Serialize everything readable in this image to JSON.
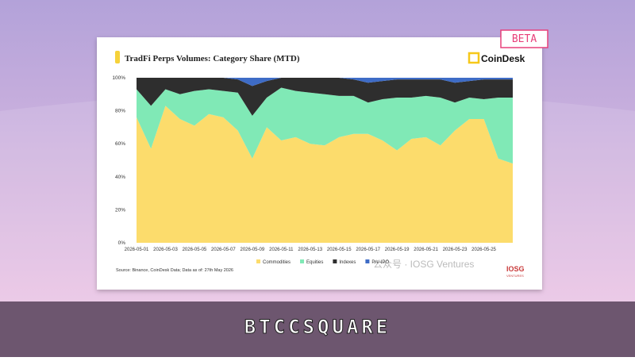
{
  "badge": "BETA",
  "brand": "CoinDesk",
  "footer": "BTCCSQUARE",
  "source": "Source: Binance, CoinDesk Data; Data as of: 27th May 2026",
  "watermark": "公众号 · IOSG Ventures",
  "logo": {
    "name": "IOSG",
    "sub": "VENTURES"
  },
  "chart_data": {
    "type": "stacked-area",
    "title": "TradFi Perps Volumes: Category Share (MTD)",
    "categories": [
      "2026-05-01",
      null,
      "2026-05-03",
      null,
      "2026-05-05",
      null,
      "2026-05-07",
      null,
      "2026-05-09",
      null,
      "2026-05-11",
      null,
      "2026-05-13",
      null,
      "2026-05-15",
      null,
      "2026-05-17",
      null,
      "2026-05-19",
      null,
      "2026-05-21",
      null,
      "2026-05-23",
      null,
      "2026-05-25",
      null,
      null
    ],
    "series": [
      {
        "name": "Commodities",
        "color": "#fcdc6c",
        "values": [
          76,
          57,
          83,
          75,
          71,
          78,
          76,
          68,
          51,
          70,
          62,
          64,
          60,
          59,
          64,
          66,
          66,
          62,
          56,
          63,
          64,
          59,
          68,
          75,
          75,
          51,
          48
        ]
      },
      {
        "name": "Equities",
        "color": "#80e9b6",
        "values": [
          17,
          26,
          10,
          15,
          21,
          15,
          16,
          23,
          26,
          18,
          32,
          28,
          31,
          31,
          25,
          23,
          19,
          25,
          32,
          25,
          25,
          29,
          17,
          13,
          12,
          37,
          40
        ]
      },
      {
        "name": "Indexes",
        "color": "#2e2e2e",
        "values": [
          7,
          17,
          7,
          10,
          8,
          7,
          8,
          8,
          18,
          10,
          6,
          8,
          9,
          10,
          11,
          10,
          12,
          11,
          11,
          11,
          10,
          11,
          12,
          10,
          12,
          11,
          11
        ]
      },
      {
        "name": "Pre-IPO",
        "color": "#3e6cc6",
        "values": [
          0,
          0,
          0,
          0,
          0,
          0,
          0,
          1,
          5,
          2,
          0,
          0,
          0,
          0,
          0,
          1,
          3,
          2,
          1,
          1,
          1,
          1,
          3,
          2,
          1,
          1,
          1
        ]
      }
    ],
    "ylim": [
      0,
      100
    ],
    "yticks": [
      {
        "value": 0,
        "label": "0%"
      },
      {
        "value": 20,
        "label": "20%"
      },
      {
        "value": 40,
        "label": "40%"
      },
      {
        "value": 60,
        "label": "60%"
      },
      {
        "value": 80,
        "label": "80%"
      },
      {
        "value": 100,
        "label": "100%"
      }
    ],
    "grid": false,
    "legend": "bottom"
  }
}
